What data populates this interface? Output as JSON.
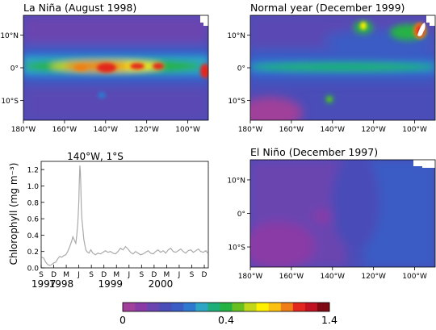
{
  "panels": [
    {
      "id": "la-nina",
      "title": "La Niña (August 1998)"
    },
    {
      "id": "normal",
      "title": "Normal year (December 1999)"
    },
    {
      "id": "el-nino",
      "title": "El Niño (December 1997)"
    }
  ],
  "map_axes": {
    "lon_ticks": [
      {
        "value": -180,
        "label": "180°W"
      },
      {
        "value": -160,
        "label": "160°W"
      },
      {
        "value": -140,
        "label": "140°W"
      },
      {
        "value": -120,
        "label": "120°W"
      },
      {
        "value": -100,
        "label": "100°W"
      }
    ],
    "lat_ticks": [
      {
        "value": 10,
        "label": "10°N"
      },
      {
        "value": 0,
        "label": "0°"
      },
      {
        "value": -10,
        "label": "10°S"
      }
    ],
    "lon_range": [
      -180,
      -90
    ],
    "lat_range": [
      -16,
      16
    ]
  },
  "colorbar": {
    "min_label": "0",
    "mid_label": "0.4",
    "max_label": "1.4",
    "colors": [
      "#a0409a",
      "#8a3aa6",
      "#6a44b0",
      "#4a4cb8",
      "#3a5cc4",
      "#2f78cf",
      "#2ea5c5",
      "#1fae7a",
      "#25b245",
      "#68c020",
      "#c2d61a",
      "#fff000",
      "#fcc010",
      "#f07e18",
      "#e3261f",
      "#c01220",
      "#7e0a14"
    ]
  },
  "chart_data": {
    "type": "line",
    "title": "140°W, 1°S",
    "ylabel": "Chlorophyll (mg m⁻³)",
    "ylim": [
      0,
      1.3
    ],
    "yticks": [
      0.0,
      0.2,
      0.4,
      0.6,
      0.8,
      1.0,
      1.2
    ],
    "ytick_labels": [
      "0.0",
      "0.2",
      "0.4",
      "0.6",
      "0.8",
      "1.0",
      "1.2"
    ],
    "xlim": [
      1997.67,
      2001.0
    ],
    "xticks": [
      {
        "x": 1997.67,
        "label": "S"
      },
      {
        "x": 1997.92,
        "label": "D"
      },
      {
        "x": 1998.17,
        "label": "M"
      },
      {
        "x": 1998.42,
        "label": "J"
      },
      {
        "x": 1998.67,
        "label": "S"
      },
      {
        "x": 1998.92,
        "label": "D"
      },
      {
        "x": 1999.17,
        "label": "M"
      },
      {
        "x": 1999.42,
        "label": "J"
      },
      {
        "x": 1999.67,
        "label": "S"
      },
      {
        "x": 1999.92,
        "label": "D"
      },
      {
        "x": 2000.17,
        "label": "M"
      },
      {
        "x": 2000.42,
        "label": "J"
      },
      {
        "x": 2000.67,
        "label": "S"
      },
      {
        "x": 2000.92,
        "label": "D"
      }
    ],
    "year_labels": [
      {
        "x": 1997.72,
        "label": "1997"
      },
      {
        "x": 1998.07,
        "label": "1998"
      },
      {
        "x": 1999.05,
        "label": "1999"
      },
      {
        "x": 2000.05,
        "label": "2000"
      }
    ],
    "series": [
      {
        "color": "#aaaaaa",
        "x": [
          1997.68,
          1997.72,
          1997.76,
          1997.8,
          1997.84,
          1997.88,
          1997.92,
          1997.96,
          1998.0,
          1998.04,
          1998.08,
          1998.12,
          1998.16,
          1998.2,
          1998.24,
          1998.28,
          1998.3,
          1998.33,
          1998.36,
          1998.38,
          1998.4,
          1998.42,
          1998.43,
          1998.44,
          1998.45,
          1998.46,
          1998.47,
          1998.48,
          1998.5,
          1998.52,
          1998.54,
          1998.56,
          1998.58,
          1998.62,
          1998.66,
          1998.7,
          1998.75,
          1998.8,
          1998.85,
          1998.9,
          1998.95,
          1999.0,
          1999.05,
          1999.1,
          1999.15,
          1999.2,
          1999.25,
          1999.3,
          1999.35,
          1999.4,
          1999.45,
          1999.5,
          1999.55,
          1999.6,
          1999.65,
          1999.7,
          1999.75,
          1999.8,
          1999.85,
          1999.9,
          1999.95,
          2000.0,
          2000.05,
          2000.1,
          2000.15,
          2000.2,
          2000.25,
          2000.3,
          2000.35,
          2000.4,
          2000.45,
          2000.5,
          2000.55,
          2000.6,
          2000.65,
          2000.7,
          2000.75,
          2000.8,
          2000.85,
          2000.9,
          2000.95,
          2000.99
        ],
        "values": [
          0.13,
          0.12,
          0.07,
          0.04,
          0.03,
          0.04,
          0.06,
          0.07,
          0.11,
          0.14,
          0.13,
          0.15,
          0.16,
          0.2,
          0.26,
          0.33,
          0.38,
          0.34,
          0.3,
          0.4,
          0.55,
          0.8,
          1.05,
          1.25,
          1.18,
          1.0,
          0.75,
          0.6,
          0.48,
          0.35,
          0.28,
          0.22,
          0.2,
          0.18,
          0.22,
          0.18,
          0.16,
          0.18,
          0.17,
          0.19,
          0.21,
          0.19,
          0.2,
          0.18,
          0.17,
          0.2,
          0.24,
          0.22,
          0.26,
          0.23,
          0.19,
          0.17,
          0.2,
          0.18,
          0.16,
          0.17,
          0.19,
          0.21,
          0.18,
          0.17,
          0.2,
          0.22,
          0.19,
          0.21,
          0.18,
          0.22,
          0.24,
          0.2,
          0.19,
          0.21,
          0.23,
          0.2,
          0.18,
          0.21,
          0.22,
          0.19,
          0.21,
          0.23,
          0.2,
          0.19,
          0.21,
          0.18
        ]
      }
    ]
  }
}
